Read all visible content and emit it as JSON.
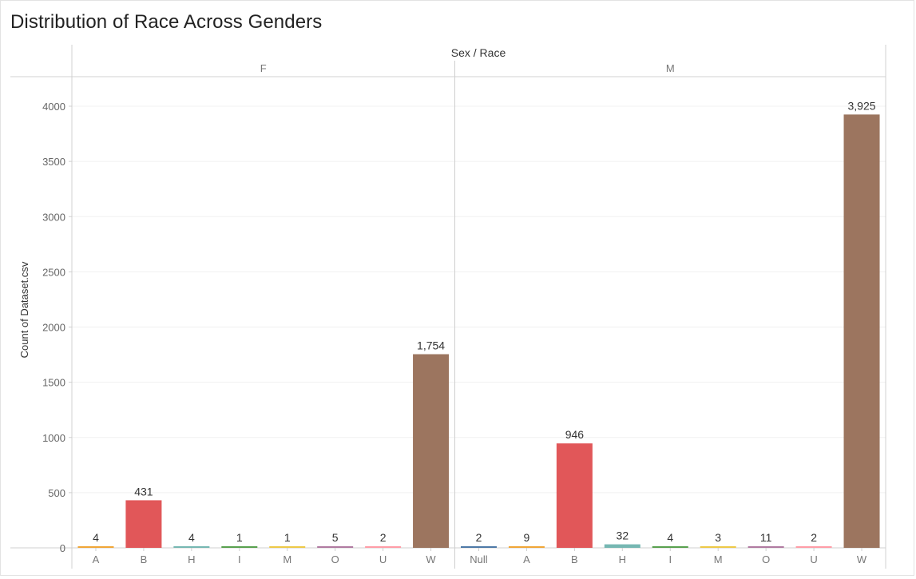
{
  "title": "Distribution of Race Across Genders",
  "colors": {
    "A": "#f0a637",
    "B": "#e15759",
    "H": "#76b7b2",
    "I": "#59a14f",
    "M": "#edc948",
    "O": "#b07aa1",
    "U": "#ff9da7",
    "W": "#9c755f",
    "Null": "#4e79a7"
  },
  "chart_data": {
    "type": "bar",
    "title": "Distribution of Race Across Genders",
    "column_header": "Sex / Race",
    "ylabel": "Count of Dataset.csv",
    "ylim": [
      0,
      4200
    ],
    "yticks": [
      0,
      500,
      1000,
      1500,
      2000,
      2500,
      3000,
      3500,
      4000
    ],
    "grid": true,
    "legend": "none",
    "panels": [
      {
        "name": "F",
        "categories": [
          "A",
          "B",
          "H",
          "I",
          "M",
          "O",
          "U",
          "W"
        ],
        "values": [
          4,
          431,
          4,
          1,
          1,
          5,
          2,
          1754
        ],
        "labels": [
          "4",
          "431",
          "4",
          "1",
          "1",
          "5",
          "2",
          "1,754"
        ]
      },
      {
        "name": "M",
        "categories": [
          "Null",
          "A",
          "B",
          "H",
          "I",
          "M",
          "O",
          "U",
          "W"
        ],
        "values": [
          2,
          9,
          946,
          32,
          4,
          3,
          11,
          2,
          3925
        ],
        "labels": [
          "2",
          "9",
          "946",
          "32",
          "4",
          "3",
          "11",
          "2",
          "3,925"
        ]
      }
    ]
  }
}
